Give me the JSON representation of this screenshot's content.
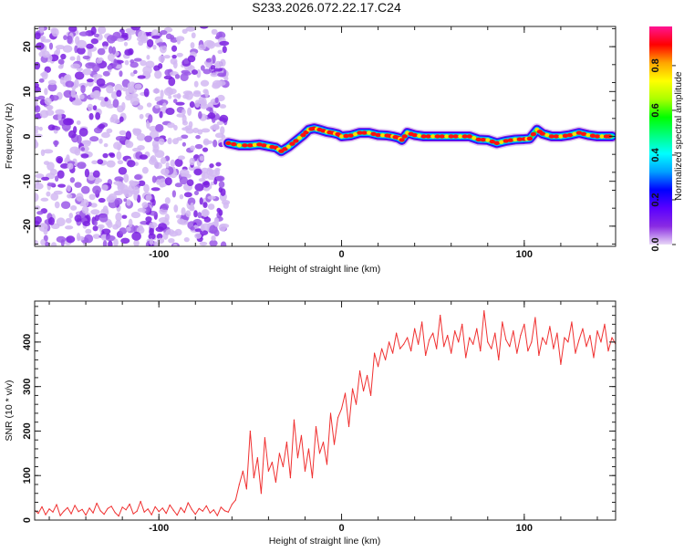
{
  "chart_data": [
    {
      "type": "heatmap",
      "title": "S233.2026.072.22.17.C24",
      "xlabel": "Height of straight line (km)",
      "ylabel": "Frequency (Hz)",
      "xlim": [
        -168,
        150
      ],
      "ylim": [
        -24.5,
        24.5
      ],
      "xticks": [
        -100,
        0,
        100
      ],
      "yticks": [
        -20,
        -10,
        0,
        10,
        20
      ],
      "noise_region": [
        -168,
        -63
      ],
      "ridge": {
        "x": [
          -62,
          -56,
          -50,
          -45,
          -40,
          -36,
          -33,
          -29,
          -25,
          -21,
          -18,
          -15,
          -12,
          -8,
          -5,
          -2,
          0,
          5,
          10,
          15,
          20,
          25,
          28,
          31,
          33,
          36,
          40,
          45,
          50,
          55,
          60,
          65,
          70,
          75,
          80,
          85,
          90,
          95,
          100,
          103,
          107,
          110,
          115,
          120,
          125,
          130,
          135,
          140,
          145,
          148
        ],
        "freq": [
          -1.5,
          -2,
          -2,
          -1.8,
          -2.2,
          -2.5,
          -3.3,
          -2.3,
          -1,
          0.3,
          1.5,
          1.8,
          1.5,
          1,
          0.8,
          0.5,
          0,
          0.2,
          0.8,
          0.8,
          0.3,
          0.2,
          0,
          -0.3,
          -0.8,
          0.8,
          0.3,
          0,
          0,
          0,
          0,
          0,
          0,
          -0.7,
          -0.8,
          -1.5,
          -1,
          -0.7,
          -0.6,
          -0.5,
          1.5,
          0.6,
          0,
          0,
          0.3,
          0.8,
          0.3,
          0,
          0,
          0
        ]
      },
      "colorbar": {
        "label": "Normalized spectral amplitude",
        "ticks": [
          "0.0",
          "0.2",
          "0.4",
          "0.6",
          "0.8"
        ],
        "range": [
          0,
          0.975
        ],
        "colors": [
          "#e8d8f6",
          "#8a2be2",
          "#5a00ff",
          "#0000ff",
          "#00a0ff",
          "#00ffff",
          "#00ff80",
          "#00ff00",
          "#aaff00",
          "#ffff00",
          "#ffa500",
          "#ff0000",
          "#ff1493"
        ]
      }
    },
    {
      "type": "line",
      "xlabel": "Height of straight line (km)",
      "ylabel": "SNR (10 * v/v)",
      "xlim": [
        -168,
        150
      ],
      "ylim": [
        0,
        492
      ],
      "xticks": [
        -100,
        0,
        100
      ],
      "yticks": [
        0,
        100,
        200,
        300,
        400
      ],
      "x_start": -168,
      "x_step": 2,
      "color": "#f03030",
      "values": [
        22,
        15,
        30,
        12,
        25,
        18,
        35,
        10,
        20,
        28,
        14,
        33,
        19,
        24,
        11,
        27,
        16,
        38,
        21,
        13,
        26,
        31,
        17,
        9,
        29,
        23,
        36,
        14,
        20,
        42,
        18,
        25,
        12,
        30,
        19,
        27,
        15,
        34,
        22,
        11,
        28,
        17,
        39,
        24,
        13,
        26,
        20,
        32,
        16,
        23,
        10,
        29,
        21,
        18,
        35,
        45,
        80,
        110,
        70,
        200,
        95,
        140,
        60,
        185,
        110,
        130,
        85,
        150,
        120,
        175,
        95,
        225,
        140,
        190,
        110,
        160,
        95,
        210,
        150,
        175,
        125,
        240,
        170,
        230,
        250,
        285,
        210,
        295,
        260,
        335,
        290,
        325,
        280,
        375,
        345,
        385,
        360,
        400,
        375,
        420,
        385,
        395,
        410,
        380,
        430,
        395,
        445,
        370,
        405,
        420,
        385,
        460,
        390,
        415,
        375,
        425,
        400,
        440,
        365,
        410,
        395,
        430,
        380,
        470,
        400,
        385,
        420,
        360,
        445,
        405,
        390,
        425,
        375,
        415,
        440,
        380,
        400,
        455,
        370,
        410,
        395,
        435,
        385,
        420,
        350,
        410,
        400,
        445,
        375,
        405,
        430,
        390,
        415,
        365,
        425,
        400,
        440,
        380,
        410,
        395
      ]
    }
  ]
}
